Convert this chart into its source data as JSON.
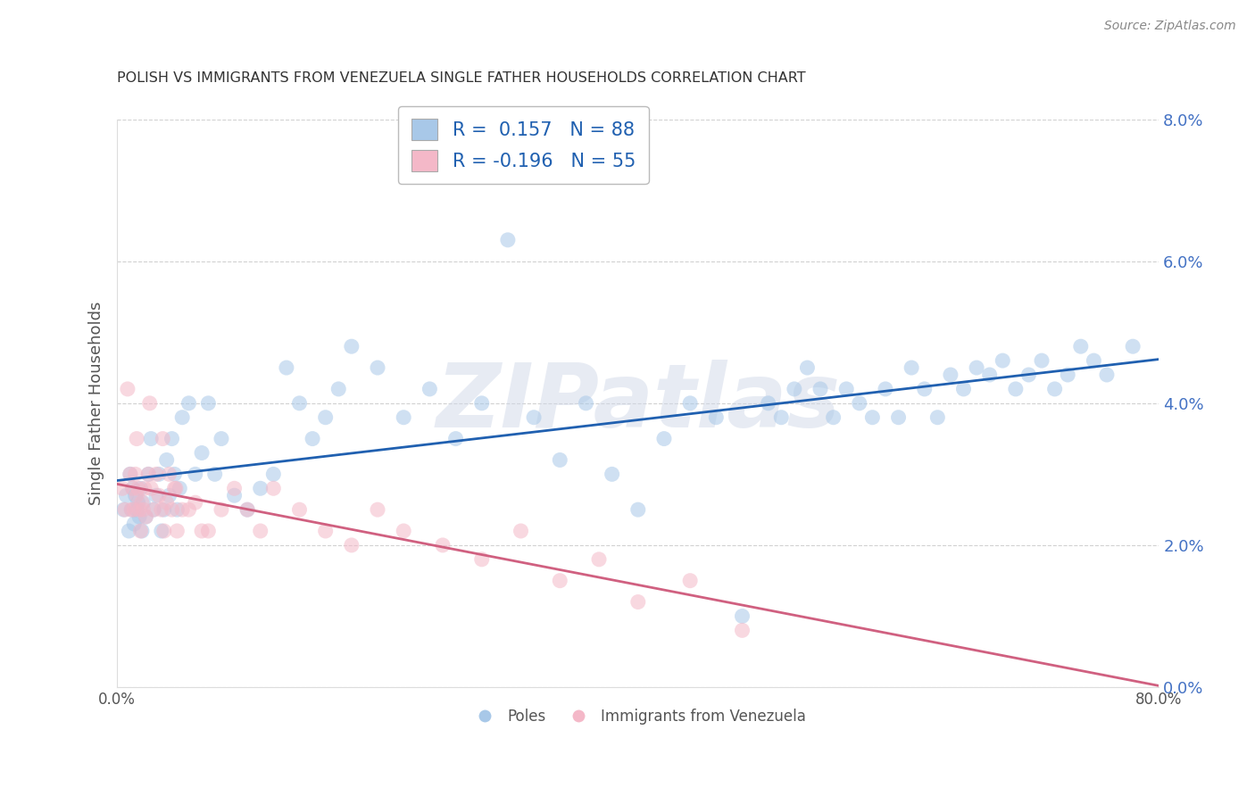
{
  "title": "POLISH VS IMMIGRANTS FROM VENEZUELA SINGLE FATHER HOUSEHOLDS CORRELATION CHART",
  "source": "Source: ZipAtlas.com",
  "xlabel": "",
  "ylabel": "Single Father Households",
  "xlim": [
    0.0,
    0.8
  ],
  "ylim": [
    0.0,
    0.08
  ],
  "xticks": [
    0.0,
    0.1,
    0.2,
    0.3,
    0.4,
    0.5,
    0.6,
    0.7,
    0.8
  ],
  "yticks": [
    0.0,
    0.02,
    0.04,
    0.06,
    0.08
  ],
  "xtick_labels": [
    "0.0%",
    "",
    "",
    "",
    "",
    "",
    "",
    "",
    "80.0%"
  ],
  "ytick_labels_right": [
    "0.0%",
    "2.0%",
    "4.0%",
    "6.0%",
    "8.0%"
  ],
  "blue_color": "#a8c8e8",
  "pink_color": "#f4b8c8",
  "blue_line_color": "#2060b0",
  "pink_line_color": "#d06080",
  "R_blue": 0.157,
  "N_blue": 88,
  "R_pink": -0.196,
  "N_pink": 55,
  "legend_label_blue": "Poles",
  "legend_label_pink": "Immigrants from Venezuela",
  "watermark": "ZIPatlas",
  "poles_x": [
    0.005,
    0.007,
    0.009,
    0.01,
    0.011,
    0.012,
    0.013,
    0.014,
    0.015,
    0.016,
    0.017,
    0.018,
    0.019,
    0.02,
    0.022,
    0.024,
    0.026,
    0.028,
    0.03,
    0.032,
    0.034,
    0.036,
    0.038,
    0.04,
    0.042,
    0.044,
    0.046,
    0.048,
    0.05,
    0.055,
    0.06,
    0.065,
    0.07,
    0.075,
    0.08,
    0.09,
    0.1,
    0.11,
    0.12,
    0.13,
    0.14,
    0.15,
    0.16,
    0.17,
    0.18,
    0.2,
    0.22,
    0.24,
    0.26,
    0.28,
    0.3,
    0.32,
    0.34,
    0.36,
    0.38,
    0.4,
    0.42,
    0.44,
    0.46,
    0.48,
    0.5,
    0.51,
    0.52,
    0.53,
    0.54,
    0.55,
    0.56,
    0.57,
    0.58,
    0.59,
    0.6,
    0.61,
    0.62,
    0.63,
    0.64,
    0.65,
    0.66,
    0.67,
    0.68,
    0.69,
    0.7,
    0.71,
    0.72,
    0.73,
    0.74,
    0.75,
    0.76,
    0.78
  ],
  "poles_y": [
    0.025,
    0.027,
    0.022,
    0.03,
    0.025,
    0.028,
    0.023,
    0.027,
    0.025,
    0.026,
    0.024,
    0.028,
    0.022,
    0.026,
    0.024,
    0.03,
    0.035,
    0.025,
    0.027,
    0.03,
    0.022,
    0.025,
    0.032,
    0.027,
    0.035,
    0.03,
    0.025,
    0.028,
    0.038,
    0.04,
    0.03,
    0.033,
    0.04,
    0.03,
    0.035,
    0.027,
    0.025,
    0.028,
    0.03,
    0.045,
    0.04,
    0.035,
    0.038,
    0.042,
    0.048,
    0.045,
    0.038,
    0.042,
    0.035,
    0.04,
    0.063,
    0.038,
    0.032,
    0.04,
    0.03,
    0.025,
    0.035,
    0.04,
    0.038,
    0.01,
    0.04,
    0.038,
    0.042,
    0.045,
    0.042,
    0.038,
    0.042,
    0.04,
    0.038,
    0.042,
    0.038,
    0.045,
    0.042,
    0.038,
    0.044,
    0.042,
    0.045,
    0.044,
    0.046,
    0.042,
    0.044,
    0.046,
    0.042,
    0.044,
    0.048,
    0.046,
    0.044,
    0.048
  ],
  "venez_x": [
    0.004,
    0.006,
    0.008,
    0.01,
    0.011,
    0.012,
    0.013,
    0.014,
    0.015,
    0.016,
    0.017,
    0.018,
    0.019,
    0.02,
    0.021,
    0.022,
    0.024,
    0.026,
    0.028,
    0.03,
    0.032,
    0.034,
    0.036,
    0.038,
    0.04,
    0.042,
    0.044,
    0.046,
    0.05,
    0.06,
    0.07,
    0.08,
    0.09,
    0.1,
    0.11,
    0.12,
    0.14,
    0.16,
    0.18,
    0.2,
    0.22,
    0.25,
    0.28,
    0.31,
    0.34,
    0.37,
    0.4,
    0.44,
    0.48,
    0.015,
    0.025,
    0.035,
    0.045,
    0.055,
    0.065
  ],
  "venez_y": [
    0.028,
    0.025,
    0.042,
    0.03,
    0.025,
    0.028,
    0.025,
    0.03,
    0.027,
    0.028,
    0.025,
    0.022,
    0.026,
    0.025,
    0.028,
    0.024,
    0.03,
    0.028,
    0.025,
    0.03,
    0.027,
    0.025,
    0.022,
    0.026,
    0.03,
    0.025,
    0.028,
    0.022,
    0.025,
    0.026,
    0.022,
    0.025,
    0.028,
    0.025,
    0.022,
    0.028,
    0.025,
    0.022,
    0.02,
    0.025,
    0.022,
    0.02,
    0.018,
    0.022,
    0.015,
    0.018,
    0.012,
    0.015,
    0.008,
    0.035,
    0.04,
    0.035,
    0.028,
    0.025,
    0.022
  ]
}
